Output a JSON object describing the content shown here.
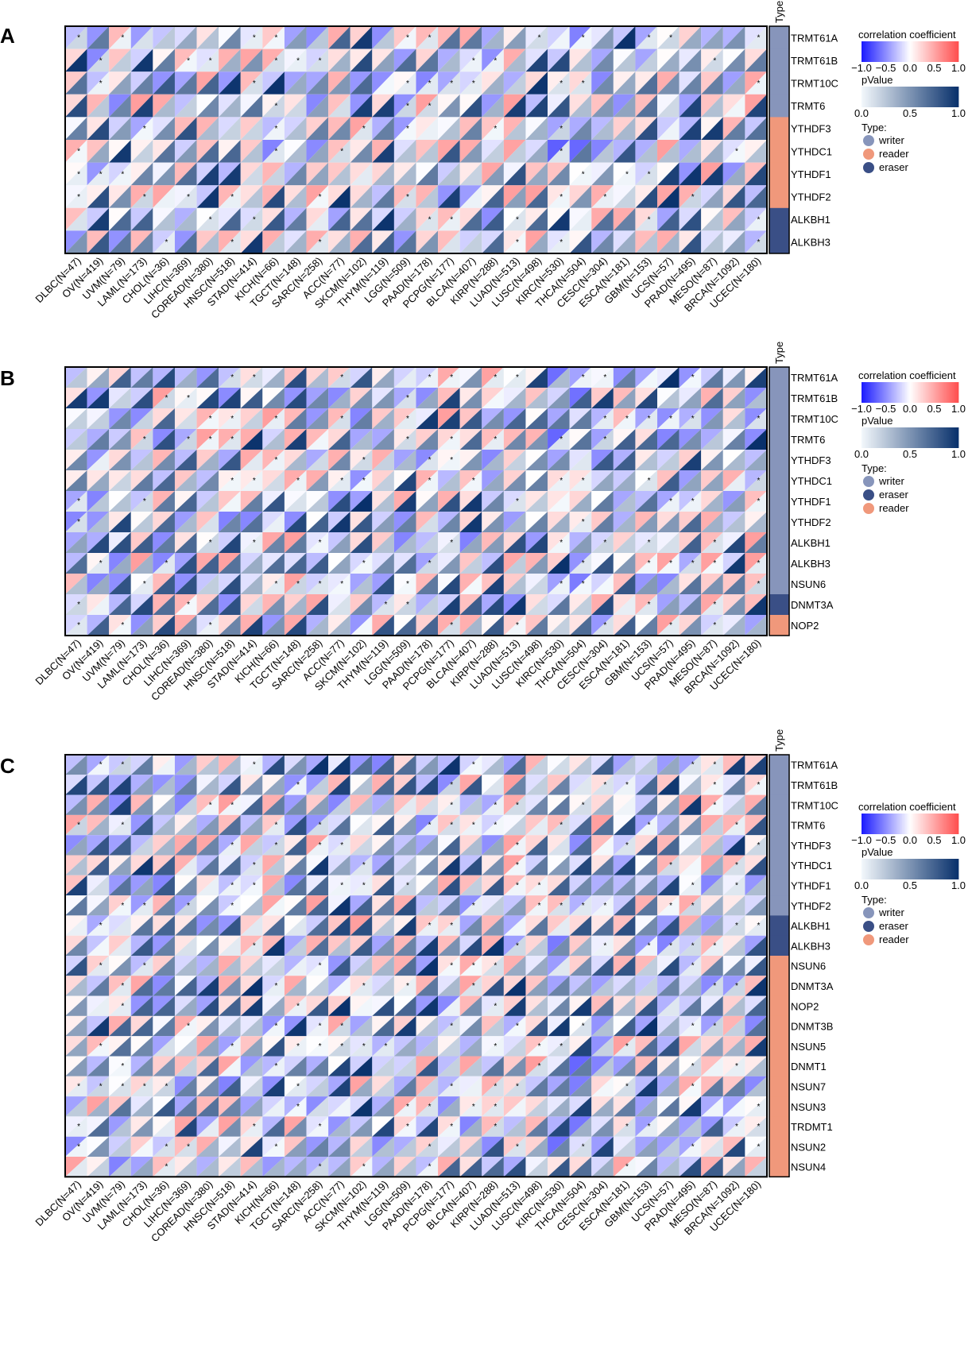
{
  "chart_data": [
    {
      "panel": "A",
      "type": "heatmap",
      "genes": [
        "TRMT61A",
        "TRMT61B",
        "TRMT10C",
        "TRMT6",
        "YTHDF3",
        "YTHDC1",
        "YTHDF1",
        "YTHDF2",
        "ALKBH1",
        "ALKBH3"
      ],
      "gene_types": [
        "writer",
        "writer",
        "writer",
        "writer",
        "reader",
        "reader",
        "reader",
        "reader",
        "eraser",
        "eraser"
      ],
      "legend_types": [
        "writer",
        "reader",
        "eraser"
      ],
      "cancers": [
        "DLBC(N=47)",
        "OV(N=419)",
        "UVM(N=79)",
        "LAML(N=173)",
        "CHOL(N=36)",
        "LIHC(N=369)",
        "COREAD(N=380)",
        "HNSC(N=518)",
        "STAD(N=414)",
        "KICH(N=66)",
        "TGCT(N=148)",
        "SARC(N=258)",
        "ACC(N=77)",
        "SKCM(N=102)",
        "THYM(N=119)",
        "LGG(N=509)",
        "PAAD(N=178)",
        "PCPG(N=177)",
        "BLCA(N=407)",
        "KIRP(N=288)",
        "LUAD(N=513)",
        "LUSC(N=498)",
        "KIRC(N=530)",
        "THCA(N=504)",
        "CESC(N=304)",
        "ESCA(N=181)",
        "GBM(N=153)",
        "UCS(N=57)",
        "PRAD(N=495)",
        "MESO(N=87)",
        "BRCA(N=1092)",
        "UCEC(N=180)"
      ],
      "seed": 11
    },
    {
      "panel": "B",
      "type": "heatmap",
      "genes": [
        "TRMT61A",
        "TRMT61B",
        "TRMT10C",
        "TRMT6",
        "YTHDF3",
        "YTHDC1",
        "YTHDF1",
        "YTHDF2",
        "ALKBH1",
        "ALKBH3",
        "NSUN6",
        "DNMT3A",
        "NOP2"
      ],
      "gene_types": [
        "writer",
        "writer",
        "writer",
        "writer",
        "writer",
        "writer",
        "writer",
        "writer",
        "writer",
        "writer",
        "writer",
        "eraser",
        "reader"
      ],
      "legend_types": [
        "writer",
        "eraser",
        "reader"
      ],
      "cancers": [
        "DLBC(N=47)",
        "OV(N=419)",
        "UVM(N=79)",
        "LAML(N=173)",
        "CHOL(N=36)",
        "LIHC(N=369)",
        "COREAD(N=380)",
        "HNSC(N=518)",
        "STAD(N=414)",
        "KICH(N=66)",
        "TGCT(N=148)",
        "SARC(N=258)",
        "ACC(N=77)",
        "SKCM(N=102)",
        "THYM(N=119)",
        "LGG(N=509)",
        "PAAD(N=178)",
        "PCPG(N=177)",
        "BLCA(N=407)",
        "KIRP(N=288)",
        "LUAD(N=513)",
        "LUSC(N=498)",
        "KIRC(N=530)",
        "THCA(N=504)",
        "CESC(N=304)",
        "ESCA(N=181)",
        "GBM(N=153)",
        "UCS(N=57)",
        "PRAD(N=495)",
        "MESO(N=87)",
        "BRCA(N=1092)",
        "UCEC(N=180)"
      ],
      "seed": 23
    },
    {
      "panel": "C",
      "type": "heatmap",
      "genes": [
        "TRMT61A",
        "TRMT61B",
        "TRMT10C",
        "TRMT6",
        "YTHDF3",
        "YTHDC1",
        "YTHDF1",
        "YTHDF2",
        "ALKBH1",
        "ALKBH3",
        "NSUN6",
        "DNMT3A",
        "NOP2",
        "DNMT3B",
        "NSUN5",
        "DNMT1",
        "NSUN7",
        "NSUN3",
        "TRDMT1",
        "NSUN2",
        "NSUN4"
      ],
      "gene_types": [
        "writer",
        "writer",
        "writer",
        "writer",
        "writer",
        "writer",
        "writer",
        "writer",
        "eraser",
        "eraser",
        "reader",
        "reader",
        "reader",
        "reader",
        "reader",
        "reader",
        "reader",
        "reader",
        "reader",
        "reader",
        "reader"
      ],
      "legend_types": [
        "writer",
        "eraser",
        "reader"
      ],
      "cancers": [
        "DLBC(N=47)",
        "OV(N=419)",
        "UVM(N=79)",
        "LAML(N=173)",
        "CHOL(N=36)",
        "LIHC(N=369)",
        "COREAD(N=380)",
        "HNSC(N=518)",
        "STAD(N=414)",
        "KICH(N=66)",
        "TGCT(N=148)",
        "SARC(N=258)",
        "ACC(N=77)",
        "SKCM(N=102)",
        "THYM(N=119)",
        "LGG(N=509)",
        "PAAD(N=178)",
        "PCPG(N=177)",
        "BLCA(N=407)",
        "KIRP(N=288)",
        "LUAD(N=513)",
        "LUSC(N=498)",
        "KIRC(N=530)",
        "THCA(N=504)",
        "CESC(N=304)",
        "ESCA(N=181)",
        "GBM(N=153)",
        "UCS(N=57)",
        "PRAD(N=495)",
        "MESO(N=87)",
        "BRCA(N=1092)",
        "UCEC(N=180)"
      ],
      "seed": 37
    }
  ],
  "legend": {
    "type_column_title": "Type",
    "corr_title": "correlation coefficient",
    "corr_ticks": [
      "−1.0",
      "−0.5",
      "0.0",
      "0.5",
      "1.0"
    ],
    "p_title": "pValue",
    "p_ticks": [
      "0.0",
      "0.5",
      "1.0"
    ],
    "types_title": "Type:",
    "significance_mark": "*"
  },
  "colors": {
    "writer": "#8795bb",
    "reader": "#f0987b",
    "eraser": "#3a4f86",
    "corr_neg": "#1a1aff",
    "corr_mid": "#ffffff",
    "corr_pos": "#ff4d4d",
    "p_low": "#f3f8fc",
    "p_high": "#08306b"
  }
}
